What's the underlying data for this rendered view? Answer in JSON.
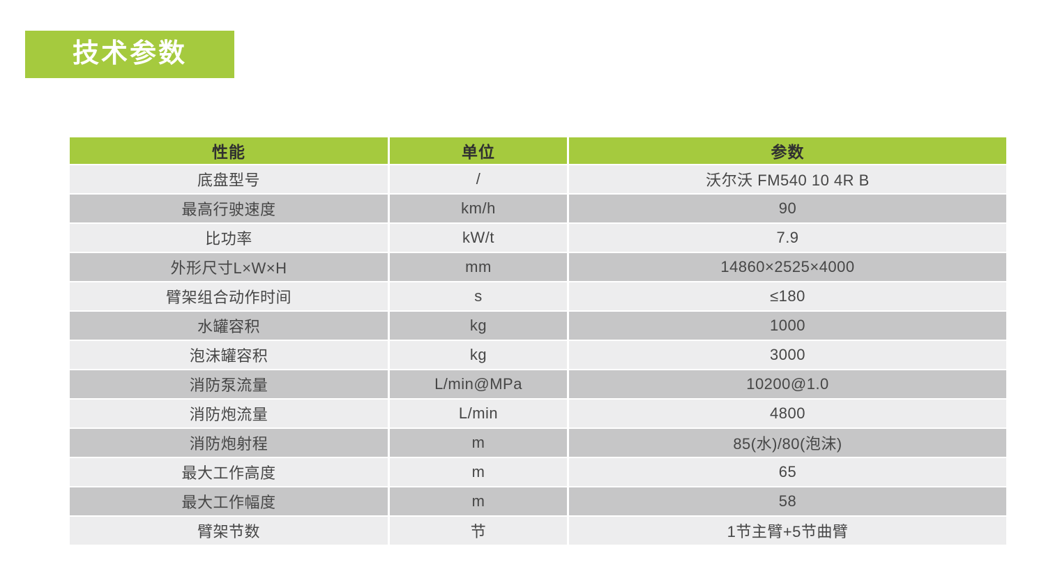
{
  "section": {
    "title": "技术参数"
  },
  "colors": {
    "accent_green": "#a5ca3e",
    "row_light": "#ededee",
    "row_dark": "#c6c6c7",
    "header_text": "#303030",
    "cell_text": "#464646",
    "title_text": "#ffffff"
  },
  "table": {
    "headers": [
      "性能",
      "单位",
      "参数"
    ],
    "rows": [
      [
        "底盘型号",
        "/",
        "沃尔沃 FM540 10 4R B"
      ],
      [
        "最高行驶速度",
        "km/h",
        "90"
      ],
      [
        "比功率",
        "kW/t",
        "7.9"
      ],
      [
        "外形尺寸L×W×H",
        "mm",
        "14860×2525×4000"
      ],
      [
        "臂架组合动作时间",
        "s",
        "≤180"
      ],
      [
        "水罐容积",
        "kg",
        "1000"
      ],
      [
        "泡沫罐容积",
        "kg",
        "3000"
      ],
      [
        "消防泵流量",
        "L/min@MPa",
        "10200@1.0"
      ],
      [
        "消防炮流量",
        "L/min",
        "4800"
      ],
      [
        "消防炮射程",
        "m",
        "85(水)/80(泡沫)"
      ],
      [
        "最大工作高度",
        "m",
        "65"
      ],
      [
        "最大工作幅度",
        "m",
        "58"
      ],
      [
        "臂架节数",
        "节",
        "1节主臂+5节曲臂"
      ]
    ]
  }
}
